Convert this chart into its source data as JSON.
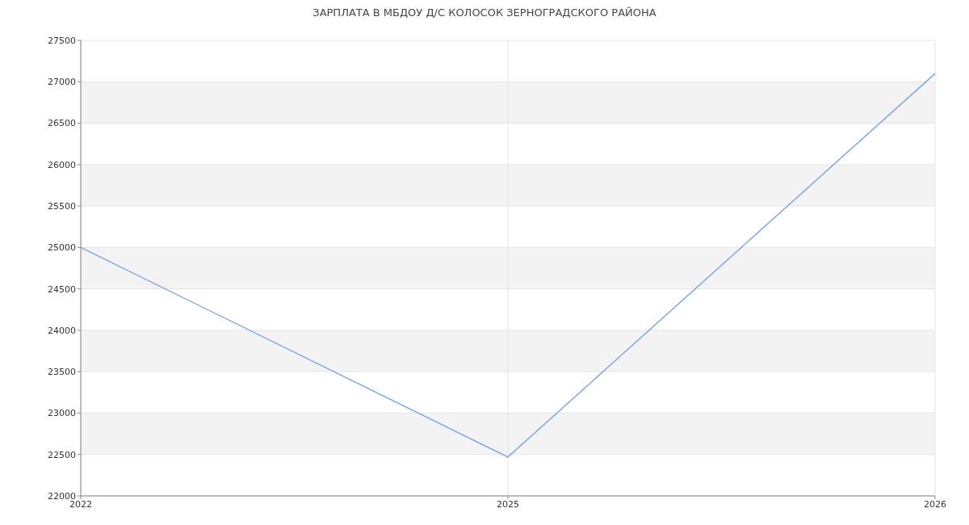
{
  "chart_data": {
    "type": "line",
    "title": "ЗАРПЛАТА В МБДОУ Д/С КОЛОСОК ЗЕРНОГРАДСКОГО РАЙОНА",
    "categories": [
      "2022",
      "2025",
      "2026"
    ],
    "series": [
      {
        "color": "#6d9cf5",
        "values": [
          25000,
          22470,
          27100
        ]
      }
    ],
    "ylim": [
      22000,
      27500
    ],
    "yticks": [
      22000,
      22500,
      23000,
      23500,
      24000,
      24500,
      25000,
      25500,
      26000,
      26500,
      27000,
      27500
    ],
    "grid": true,
    "marker": "none",
    "line_style": "solid"
  }
}
